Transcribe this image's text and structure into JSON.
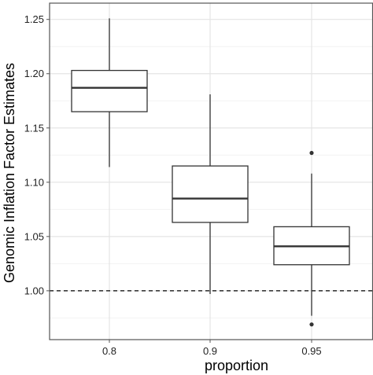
{
  "chart_data": {
    "type": "boxplot",
    "xlabel": "proportion",
    "ylabel": "Genomic Inflation Factor Estimates",
    "ylim": [
      0.955,
      1.265
    ],
    "y_ticks": [
      1.0,
      1.05,
      1.1,
      1.15,
      1.2,
      1.25
    ],
    "y_tick_labels": [
      "1.00",
      "1.05",
      "1.10",
      "1.15",
      "1.20",
      "1.25"
    ],
    "grid": true,
    "reference_line": {
      "y": 1.0,
      "style": "dashed"
    },
    "categories": [
      "0.8",
      "0.9",
      "0.95"
    ],
    "boxes": [
      {
        "category": "0.8",
        "whisker_low": 1.114,
        "q1": 1.165,
        "median": 1.187,
        "q3": 1.203,
        "whisker_high": 1.251,
        "outliers": []
      },
      {
        "category": "0.9",
        "whisker_low": 0.997,
        "q1": 1.063,
        "median": 1.085,
        "q3": 1.115,
        "whisker_high": 1.181,
        "outliers": []
      },
      {
        "category": "0.95",
        "whisker_low": 0.977,
        "q1": 1.024,
        "median": 1.041,
        "q3": 1.059,
        "whisker_high": 1.108,
        "outliers": [
          1.127,
          0.969
        ]
      }
    ],
    "colors": {
      "panel_border": "#555555",
      "grid_major": "#e4e4e4",
      "grid_minor": "#f2f2f2",
      "box_stroke": "#333333",
      "median": "#333333",
      "outlier": "#333333",
      "reference": "#000000"
    }
  }
}
